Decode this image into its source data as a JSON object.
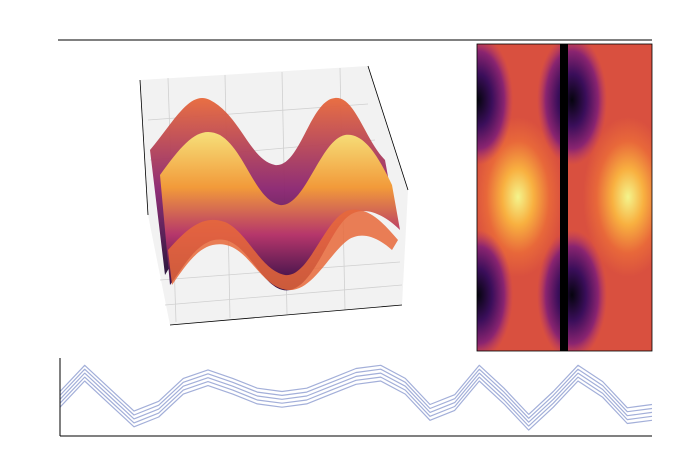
{
  "chart_data": {
    "type": "line",
    "x": [
      0,
      1,
      2,
      3,
      4,
      5,
      6,
      7,
      8,
      9,
      10,
      11,
      12,
      13,
      14,
      15,
      16,
      17,
      18,
      19,
      20,
      21,
      22,
      23,
      24
    ],
    "xlim": [
      0,
      24
    ],
    "ylim": [
      -0.1,
      1.0
    ],
    "series": [
      {
        "color": "#a3afd9",
        "values": [
          0.55,
          0.95,
          0.6,
          0.25,
          0.4,
          0.75,
          0.88,
          0.75,
          0.6,
          0.55,
          0.6,
          0.75,
          0.9,
          0.95,
          0.75,
          0.35,
          0.5,
          0.95,
          0.6,
          0.2,
          0.55,
          0.95,
          0.7,
          0.3,
          0.35
        ]
      },
      {
        "color": "#a3afd9",
        "values": [
          0.49,
          0.89,
          0.54,
          0.19,
          0.34,
          0.69,
          0.82,
          0.69,
          0.54,
          0.49,
          0.54,
          0.69,
          0.84,
          0.89,
          0.69,
          0.29,
          0.44,
          0.89,
          0.54,
          0.14,
          0.49,
          0.89,
          0.64,
          0.24,
          0.29
        ]
      },
      {
        "color": "#a3afd9",
        "values": [
          0.43,
          0.83,
          0.48,
          0.13,
          0.28,
          0.63,
          0.76,
          0.63,
          0.48,
          0.43,
          0.48,
          0.63,
          0.78,
          0.83,
          0.63,
          0.23,
          0.38,
          0.83,
          0.48,
          0.08,
          0.43,
          0.83,
          0.58,
          0.18,
          0.23
        ]
      },
      {
        "color": "#a3afd9",
        "values": [
          0.37,
          0.77,
          0.42,
          0.07,
          0.22,
          0.57,
          0.7,
          0.57,
          0.42,
          0.37,
          0.42,
          0.57,
          0.72,
          0.77,
          0.57,
          0.17,
          0.32,
          0.77,
          0.42,
          0.02,
          0.37,
          0.77,
          0.52,
          0.12,
          0.17
        ]
      },
      {
        "color": "#a3afd9",
        "values": [
          0.31,
          0.71,
          0.36,
          0.01,
          0.16,
          0.51,
          0.64,
          0.51,
          0.36,
          0.31,
          0.36,
          0.51,
          0.66,
          0.71,
          0.51,
          0.11,
          0.26,
          0.71,
          0.36,
          -0.04,
          0.31,
          0.71,
          0.46,
          0.06,
          0.11
        ]
      }
    ]
  }
}
